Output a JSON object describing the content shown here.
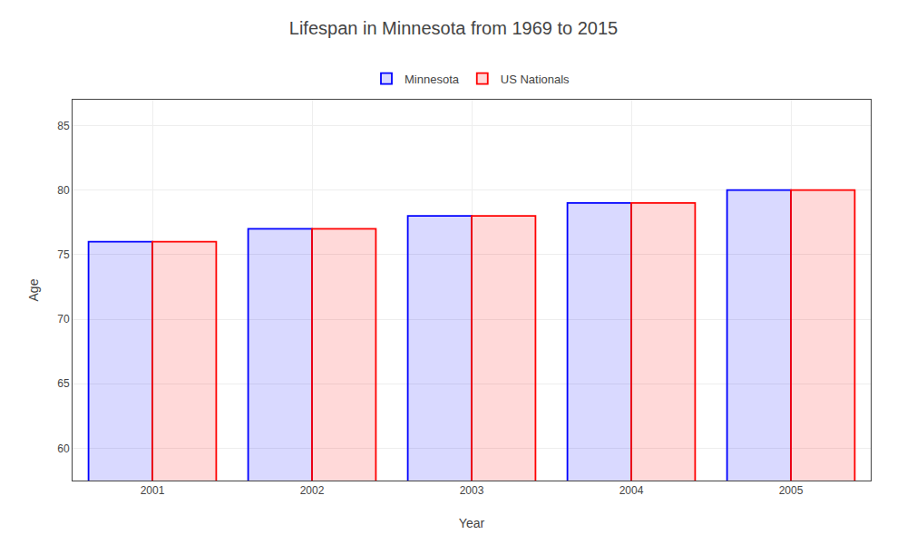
{
  "chart_data": {
    "type": "bar",
    "title": "Lifespan in Minnesota from 1969 to 2015",
    "xlabel": "Year",
    "ylabel": "Age",
    "categories": [
      "2001",
      "2002",
      "2003",
      "2004",
      "2005"
    ],
    "series": [
      {
        "name": "Minnesota",
        "color": "#0000ff",
        "values": [
          76,
          77,
          78,
          79,
          80
        ]
      },
      {
        "name": "US Nationals",
        "color": "#ff0000",
        "values": [
          76,
          77,
          78,
          79,
          80
        ]
      }
    ],
    "ylim": [
      57.5,
      87
    ],
    "yticks": [
      60,
      65,
      70,
      75,
      80,
      85
    ],
    "grid": true,
    "legend": "upper center"
  }
}
